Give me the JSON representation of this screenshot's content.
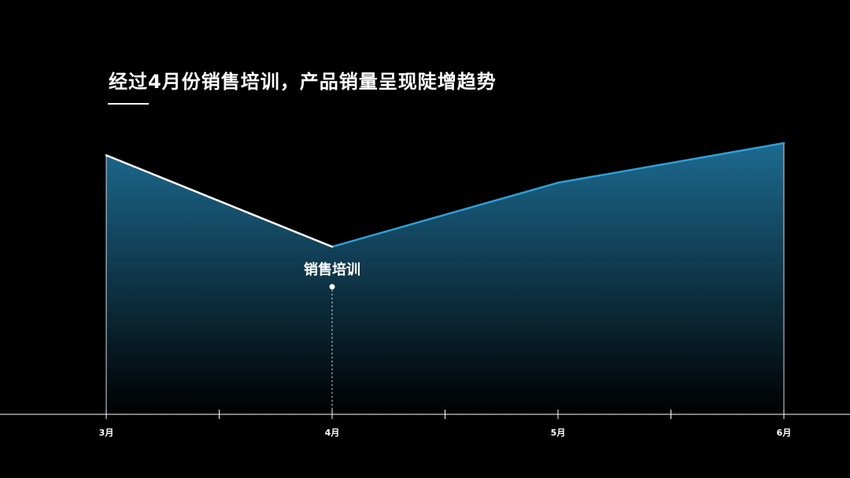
{
  "title": "经过4月份销售培训，产品销量呈现陡增趋势",
  "chart_data": {
    "type": "area",
    "title": "经过4月份销售培训，产品销量呈现陡增趋势",
    "xlabel": "",
    "ylabel": "",
    "categories": [
      "3月",
      "4月",
      "5月",
      "6月"
    ],
    "series": [
      {
        "values": [
          80,
          50,
          71,
          84
        ]
      }
    ],
    "ylim": [
      -5,
      100
    ],
    "grid": false,
    "legend": "none",
    "annotations": [
      {
        "category": "4月",
        "text": "销售培训"
      }
    ],
    "colors": {
      "background": "#000000",
      "line_before": "#ffffff",
      "line_after": "#2f9fd6",
      "fill_top": "#1d6a90",
      "fill_bottom": "#000000",
      "axis": "#ffffff"
    }
  }
}
